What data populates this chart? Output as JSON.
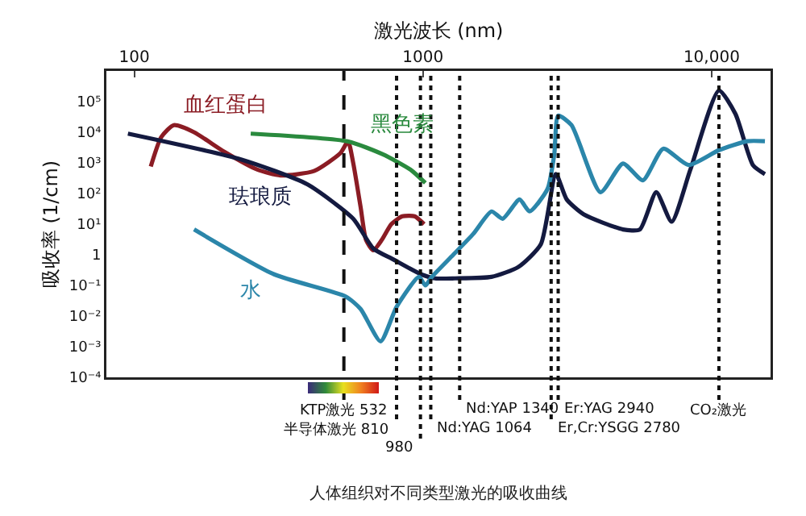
{
  "chart_data": {
    "type": "line",
    "xlabel": "激光波长 (nm)",
    "ylabel": "吸收率 (1/cm)",
    "log": "xy",
    "grid": false,
    "legend": false,
    "marker": "none",
    "line_style": "solid",
    "xlim": [
      80,
      16000
    ],
    "xticks": [
      100,
      1000,
      {
        "value": 10000,
        "label": "10,000"
      }
    ],
    "ylim": [
      0.0001,
      1000000
    ],
    "yticks": [
      {
        "value": 100000,
        "label": "10⁵"
      },
      {
        "value": 10000,
        "label": "10⁴"
      },
      {
        "value": 1000,
        "label": "10³"
      },
      {
        "value": 100,
        "label": "10²"
      },
      {
        "value": 10,
        "label": "10¹"
      },
      1,
      {
        "value": 0.1,
        "label": "10⁻¹"
      },
      {
        "value": 0.01,
        "label": "10⁻²"
      },
      {
        "value": 0.001,
        "label": "10⁻³"
      },
      {
        "value": 0.0001,
        "label": "10⁻⁴"
      }
    ],
    "series": [
      {
        "name": "血红蛋白",
        "color": "#8b1c24",
        "x": [
          114,
          124,
          137,
          161,
          205,
          267,
          321,
          419,
          518,
          550,
          573,
          608,
          635,
          673,
          719,
          777,
          848,
          935,
          1009
        ],
        "values": [
          760,
          7000,
          17000,
          10000,
          2300,
          600,
          390,
          540,
          2100,
          5000,
          1000,
          36,
          3,
          1.4,
          3,
          10,
          18,
          18,
          10
        ]
      },
      {
        "name": "黑色素",
        "color": "#2a8a3e",
        "x": [
          253,
          550,
          726,
          905,
          1019
        ],
        "values": [
          9000,
          5000,
          1900,
          600,
          220
        ]
      },
      {
        "name": "珐琅质",
        "color": "#141a40",
        "x": [
          95,
          234,
          397,
          573,
          673,
          790,
          985,
          1102,
          1289,
          1727,
          2140,
          2560,
          2887,
          3147,
          3600,
          4930,
          5640,
          6430,
          7270,
          8440,
          10600,
          12100,
          13900,
          15300
        ],
        "values": [
          9000,
          1300,
          200,
          15,
          1.6,
          0.7,
          0.23,
          0.17,
          0.17,
          0.19,
          0.4,
          2.2,
          430,
          64,
          21,
          6.7,
          6.7,
          110,
          12,
          600,
          230000,
          39000,
          850,
          430
        ]
      },
      {
        "name": "水",
        "color": "#2b86aa",
        "x": [
          161,
          305,
          541,
          608,
          713,
          810,
          968,
          1019,
          1073,
          1259,
          1493,
          1727,
          1888,
          2160,
          2340,
          2700,
          2850,
          2940,
          3270,
          4120,
          4930,
          5780,
          6800,
          8310,
          10600,
          13300,
          15300
        ],
        "values": [
          6.7,
          0.23,
          0.043,
          0.017,
          0.0015,
          0.02,
          0.19,
          0.1,
          0.19,
          0.9,
          4.8,
          26,
          15,
          64,
          26,
          140,
          1900,
          35000,
          17000,
          110,
          950,
          270,
          2900,
          850,
          2600,
          5100,
          5100
        ]
      }
    ],
    "ref_lines": [
      {
        "axis": "x",
        "value": 532,
        "label": "KTP激光 532",
        "line_style": "dashed",
        "color": "#111111"
      },
      {
        "axis": "x",
        "value": 810,
        "label": "半导体激光 810",
        "line_style": "dotted",
        "color": "#111111"
      },
      {
        "axis": "x",
        "value": 980,
        "label": "980",
        "line_style": "dotted",
        "color": "#111111"
      },
      {
        "axis": "x",
        "value": 1064,
        "label": "Nd:YAG 1064",
        "line_style": "dotted",
        "color": "#111111"
      },
      {
        "axis": "x",
        "value": 1340,
        "label": "Nd:YAP 1340",
        "line_style": "dotted",
        "color": "#111111"
      },
      {
        "axis": "x",
        "value": 2780,
        "label": "Er,Cr:YSGG 2780",
        "line_style": "dotted",
        "color": "#111111"
      },
      {
        "axis": "x",
        "value": 2940,
        "label": "Er:YAG 2940",
        "line_style": "dotted",
        "color": "#111111"
      },
      {
        "axis": "x",
        "value": 10600,
        "label": "CO₂激光",
        "line_style": "dotted",
        "color": "#111111"
      }
    ],
    "annotations": [
      "人体组织对不同类型激光的吸收曲线"
    ]
  }
}
